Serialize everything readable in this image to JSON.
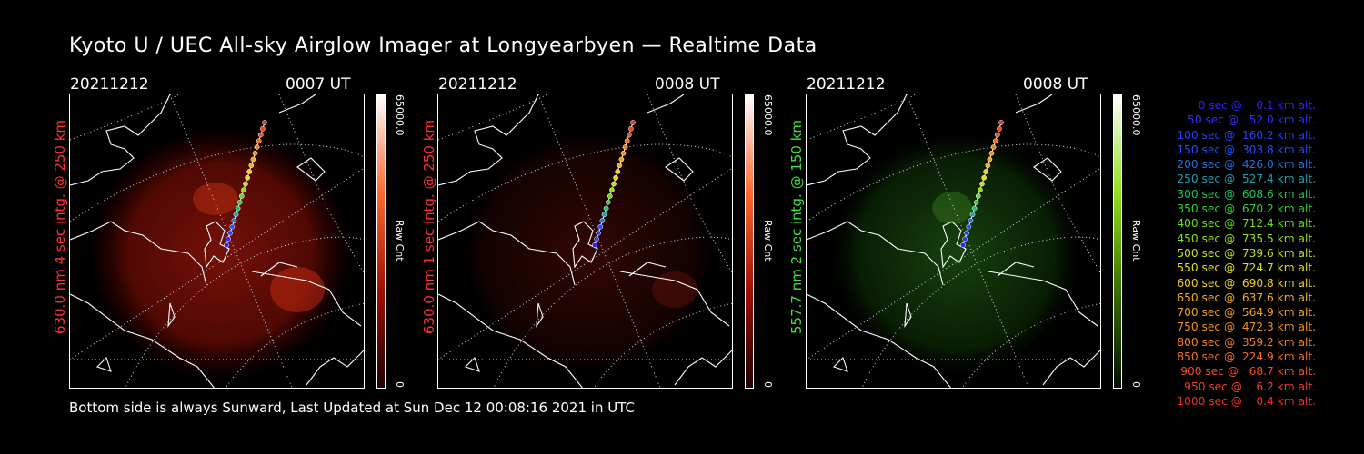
{
  "title": "Kyoto U / UEC All-sky Airglow Imager at Longyearbyen — Realtime Data",
  "footer": "Bottom side is always Sunward, Last Updated at Sun Dec 12 00:08:16 2021 in UTC",
  "panels": [
    {
      "date": "20211212",
      "time": "0007 UT",
      "label": "630.0 nm 4 sec intg. @ 250 km",
      "label_color": "#ff3030",
      "glow": "red",
      "cbar_max": "65000.0",
      "cbar_min": "0",
      "cbar_unit": "Raw Cnt"
    },
    {
      "date": "20211212",
      "time": "0008 UT",
      "label": "630.0 nm 1 sec intg. @ 250 km",
      "label_color": "#ff3030",
      "glow": "red-dim",
      "cbar_max": "65000.0",
      "cbar_min": "0",
      "cbar_unit": "Raw Cnt"
    },
    {
      "date": "20211212",
      "time": "0008 UT",
      "label": "557.7 nm 2 sec intg. @ 150 km",
      "label_color": "#40e040",
      "glow": "green",
      "cbar_max": "65000.0",
      "cbar_min": "0",
      "cbar_unit": "Raw Cnt"
    }
  ],
  "legend": [
    {
      "text": "   0 sec @    0.1 km alt.",
      "color": "#3020ff"
    },
    {
      "text": "  50 sec @   52.0 km alt.",
      "color": "#3030ff"
    },
    {
      "text": " 100 sec @  160.2 km alt.",
      "color": "#2040ff"
    },
    {
      "text": " 150 sec @  303.8 km alt.",
      "color": "#2050ff"
    },
    {
      "text": " 200 sec @  426.0 km alt.",
      "color": "#2070e0"
    },
    {
      "text": " 250 sec @  527.4 km alt.",
      "color": "#20a0b0"
    },
    {
      "text": " 300 sec @  608.6 km alt.",
      "color": "#20c060"
    },
    {
      "text": " 350 sec @  670.2 km alt.",
      "color": "#30d030"
    },
    {
      "text": " 400 sec @  712.4 km alt.",
      "color": "#60e020"
    },
    {
      "text": " 450 sec @  735.5 km alt.",
      "color": "#90e020"
    },
    {
      "text": " 500 sec @  739.6 km alt.",
      "color": "#c0e020"
    },
    {
      "text": " 550 sec @  724.7 km alt.",
      "color": "#e0e020"
    },
    {
      "text": " 600 sec @  690.8 km alt.",
      "color": "#f0d020"
    },
    {
      "text": " 650 sec @  637.6 km alt.",
      "color": "#f0b020"
    },
    {
      "text": " 700 sec @  564.9 km alt.",
      "color": "#f0a020"
    },
    {
      "text": " 750 sec @  472.3 km alt.",
      "color": "#f09020"
    },
    {
      "text": " 800 sec @  359.2 km alt.",
      "color": "#f08020"
    },
    {
      "text": " 850 sec @  224.9 km alt.",
      "color": "#f07020"
    },
    {
      "text": " 900 sec @   68.7 km alt.",
      "color": "#f05020"
    },
    {
      "text": " 950 sec @    6.2 km alt.",
      "color": "#f04020"
    },
    {
      "text": "1000 sec @    0.4 km alt.",
      "color": "#f03020"
    }
  ]
}
